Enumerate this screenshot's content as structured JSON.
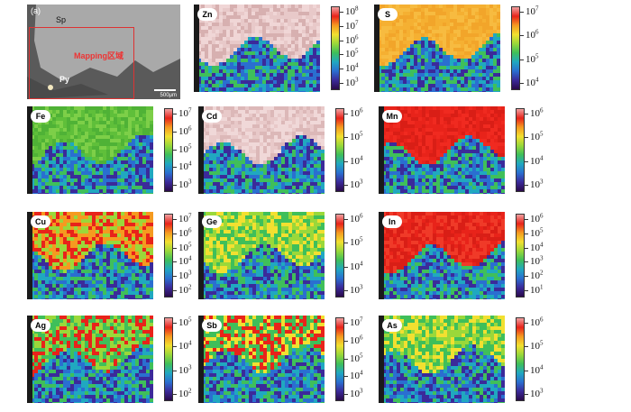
{
  "micrograph": {
    "label": "(a)",
    "sp_label": "Sp",
    "py_label": "Py",
    "roi_label": "Mapping区域",
    "scale_label": "500μm"
  },
  "panels": [
    {
      "element": "Zn",
      "ticks": [
        "8",
        "7",
        "6",
        "5",
        "4",
        "3"
      ],
      "palette": "zn"
    },
    {
      "element": "S",
      "ticks": [
        "7",
        "6",
        "5",
        "4"
      ],
      "palette": "s"
    },
    {
      "element": "Fe",
      "ticks": [
        "7",
        "6",
        "5",
        "4",
        "3"
      ],
      "palette": "fe"
    },
    {
      "element": "Cd",
      "ticks": [
        "6",
        "5",
        "4",
        "3"
      ],
      "palette": "cd"
    },
    {
      "element": "Mn",
      "ticks": [
        "6",
        "5",
        "4",
        "3"
      ],
      "palette": "mn"
    },
    {
      "element": "Cu",
      "ticks": [
        "7",
        "6",
        "5",
        "4",
        "3",
        "2"
      ],
      "palette": "cu"
    },
    {
      "element": "Ge",
      "ticks": [
        "6",
        "5",
        "4",
        "3"
      ],
      "palette": "ge"
    },
    {
      "element": "In",
      "ticks": [
        "6",
        "5",
        "4",
        "3",
        "2",
        "1"
      ],
      "palette": "in"
    },
    {
      "element": "Ag",
      "ticks": [
        "5",
        "4",
        "3",
        "2"
      ],
      "palette": "ag"
    },
    {
      "element": "Sb",
      "ticks": [
        "7",
        "6",
        "5",
        "4",
        "3"
      ],
      "palette": "sb"
    },
    {
      "element": "As",
      "ticks": [
        "6",
        "5",
        "4",
        "3"
      ],
      "palette": "as"
    }
  ],
  "colors": {
    "scale": [
      "#2a0a4a",
      "#3b2a9a",
      "#2a6fd0",
      "#20a8c0",
      "#3fbf5a",
      "#9ad83a",
      "#f2e030",
      "#f59a20",
      "#e8231a",
      "#f0a0a0"
    ]
  }
}
